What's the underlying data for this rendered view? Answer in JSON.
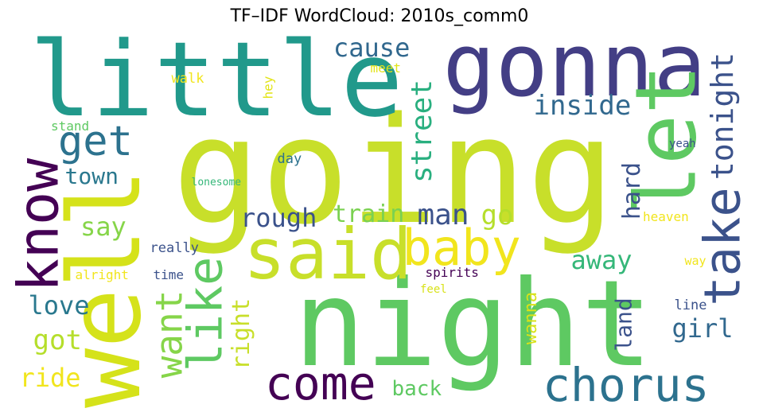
{
  "title": "TF–IDF WordCloud: 2010s_comm0",
  "words": [
    {
      "text": "going",
      "color": "#c8df2a"
    },
    {
      "text": "night",
      "color": "#5ec962"
    },
    {
      "text": "little",
      "color": "#21998b"
    },
    {
      "text": "gonna",
      "color": "#433e85"
    },
    {
      "text": "well",
      "color": "#d5e21a"
    },
    {
      "text": "let",
      "color": "#5ec962"
    },
    {
      "text": "said",
      "color": "#c8df2a"
    },
    {
      "text": "know",
      "color": "#440154"
    },
    {
      "text": "baby",
      "color": "#f1e51d"
    },
    {
      "text": "take",
      "color": "#3b528b"
    },
    {
      "text": "chorus",
      "color": "#2c728e"
    },
    {
      "text": "come",
      "color": "#440154"
    },
    {
      "text": "like",
      "color": "#5ec962"
    },
    {
      "text": "get",
      "color": "#2c728e"
    },
    {
      "text": "want",
      "color": "#86d549"
    },
    {
      "text": "tonight",
      "color": "#3b528b"
    },
    {
      "text": "street",
      "color": "#29af7f"
    },
    {
      "text": "inside",
      "color": "#31688e"
    },
    {
      "text": "cause",
      "color": "#31688e"
    },
    {
      "text": "rough",
      "color": "#3b528b"
    },
    {
      "text": "train",
      "color": "#7ad151"
    },
    {
      "text": "man",
      "color": "#3b528b"
    },
    {
      "text": "go",
      "color": "#b5de2b"
    },
    {
      "text": "away",
      "color": "#35b779"
    },
    {
      "text": "hard",
      "color": "#3b528b"
    },
    {
      "text": "right",
      "color": "#c8df2a"
    },
    {
      "text": "say",
      "color": "#86d549"
    },
    {
      "text": "town",
      "color": "#2a788e"
    },
    {
      "text": "love",
      "color": "#29788e"
    },
    {
      "text": "got",
      "color": "#b5de2b"
    },
    {
      "text": "ride",
      "color": "#f1e51d"
    },
    {
      "text": "girl",
      "color": "#31688e"
    },
    {
      "text": "land",
      "color": "#3b528b"
    },
    {
      "text": "back",
      "color": "#5ec962"
    },
    {
      "text": "wanna",
      "color": "#d8e219"
    },
    {
      "text": "walk",
      "color": "#f1e51d"
    },
    {
      "text": "meet",
      "color": "#e2e418"
    },
    {
      "text": "hey",
      "color": "#e2e418"
    },
    {
      "text": "stand",
      "color": "#5ec962"
    },
    {
      "text": "day",
      "color": "#2c728e"
    },
    {
      "text": "yeah",
      "color": "#3b528b"
    },
    {
      "text": "lonesome",
      "color": "#35b779"
    },
    {
      "text": "heaven",
      "color": "#f1e51d"
    },
    {
      "text": "really",
      "color": "#3b528b"
    },
    {
      "text": "alright",
      "color": "#f1e51d"
    },
    {
      "text": "time",
      "color": "#3b528b"
    },
    {
      "text": "spirits",
      "color": "#440154"
    },
    {
      "text": "feel",
      "color": "#d8e219"
    },
    {
      "text": "way",
      "color": "#f1e51d"
    },
    {
      "text": "line",
      "color": "#3b528b"
    }
  ]
}
